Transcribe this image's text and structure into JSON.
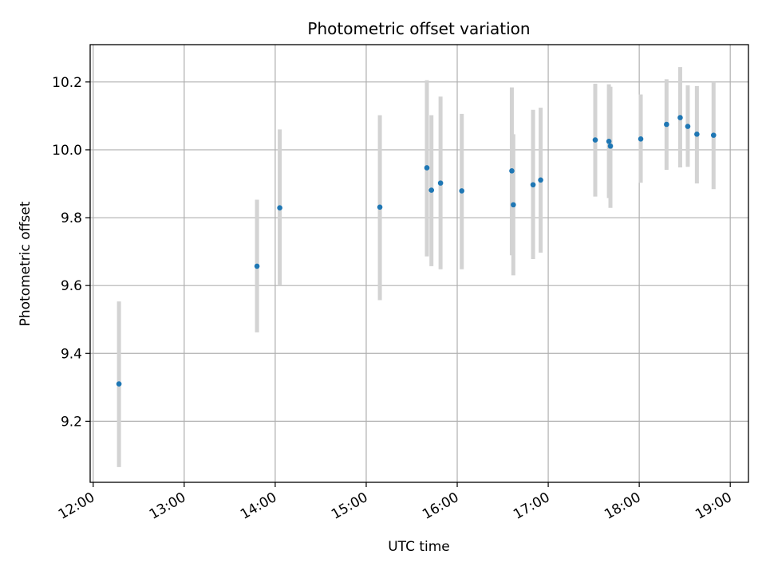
{
  "chart_data": {
    "type": "scatter",
    "title": "Photometric offset variation",
    "xlabel": "UTC time",
    "ylabel": "Photometric offset",
    "x_ticks": [
      "12:00",
      "13:00",
      "14:00",
      "15:00",
      "16:00",
      "17:00",
      "18:00",
      "19:00"
    ],
    "y_ticks": [
      "9.2",
      "9.4",
      "9.6",
      "9.8",
      "10.0",
      "10.2"
    ],
    "x_range": [
      "11:58",
      "19:12"
    ],
    "y_range": [
      9.02,
      10.31
    ],
    "grid": true,
    "colors": {
      "point": "#1f77b4",
      "errorbar": "#d3d3d3",
      "grid": "#b0b0b0"
    },
    "series": [
      {
        "points": [
          {
            "x": "12:17",
            "y": 9.31,
            "ylow": 9.065,
            "yhigh": 9.553
          },
          {
            "x": "13:48",
            "y": 9.657,
            "ylow": 9.462,
            "yhigh": 9.853
          },
          {
            "x": "14:03",
            "y": 9.829,
            "ylow": 9.6,
            "yhigh": 10.06
          },
          {
            "x": "15:09",
            "y": 9.831,
            "ylow": 9.557,
            "yhigh": 10.102
          },
          {
            "x": "15:40",
            "y": 9.947,
            "ylow": 9.686,
            "yhigh": 10.205
          },
          {
            "x": "15:43",
            "y": 9.881,
            "ylow": 9.657,
            "yhigh": 10.102
          },
          {
            "x": "15:49",
            "y": 9.902,
            "ylow": 9.648,
            "yhigh": 10.157
          },
          {
            "x": "16:03",
            "y": 9.879,
            "ylow": 9.648,
            "yhigh": 10.106
          },
          {
            "x": "16:36",
            "y": 9.938,
            "ylow": 9.689,
            "yhigh": 10.184
          },
          {
            "x": "16:37",
            "y": 9.838,
            "ylow": 9.63,
            "yhigh": 10.046
          },
          {
            "x": "16:50",
            "y": 9.897,
            "ylow": 9.678,
            "yhigh": 10.118
          },
          {
            "x": "16:55",
            "y": 9.911,
            "ylow": 9.697,
            "yhigh": 10.124
          },
          {
            "x": "17:31",
            "y": 10.029,
            "ylow": 9.862,
            "yhigh": 10.195
          },
          {
            "x": "17:40",
            "y": 10.025,
            "ylow": 9.858,
            "yhigh": 10.193
          },
          {
            "x": "17:41",
            "y": 10.011,
            "ylow": 9.829,
            "yhigh": 10.186
          },
          {
            "x": "18:01",
            "y": 10.032,
            "ylow": 9.903,
            "yhigh": 10.163
          },
          {
            "x": "18:18",
            "y": 10.075,
            "ylow": 9.941,
            "yhigh": 10.208
          },
          {
            "x": "18:27",
            "y": 10.095,
            "ylow": 9.948,
            "yhigh": 10.244
          },
          {
            "x": "18:32",
            "y": 10.069,
            "ylow": 9.95,
            "yhigh": 10.19
          },
          {
            "x": "18:38",
            "y": 10.046,
            "ylow": 9.901,
            "yhigh": 10.188
          },
          {
            "x": "18:49",
            "y": 10.043,
            "ylow": 9.884,
            "yhigh": 10.2
          }
        ]
      }
    ]
  }
}
